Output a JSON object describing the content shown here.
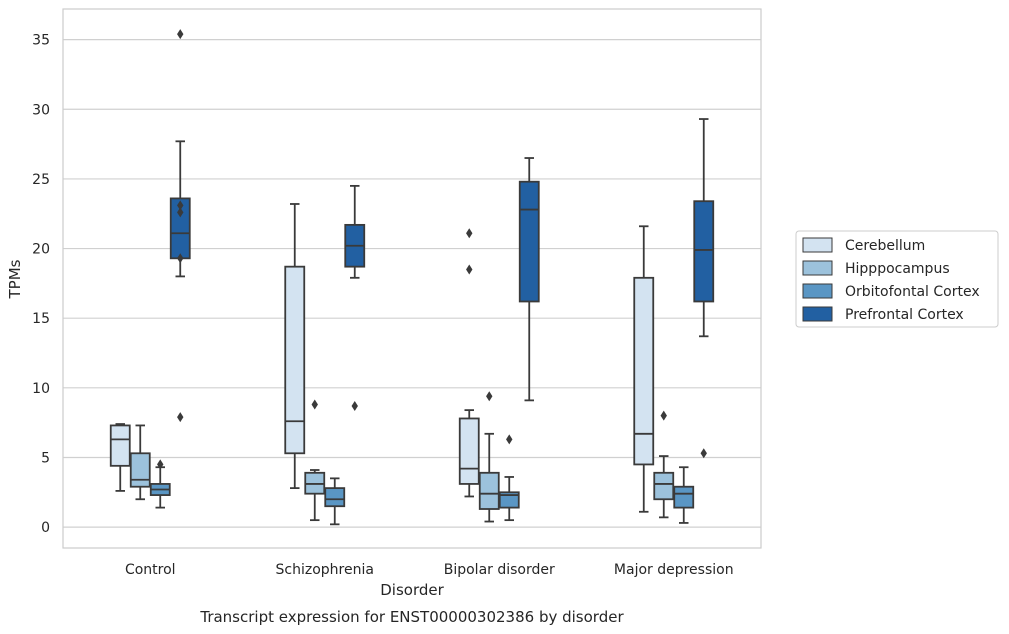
{
  "chart_data": {
    "type": "box",
    "title": "",
    "caption": "Transcript expression for ENST00000302386 by disorder",
    "xlabel": "Disorder",
    "ylabel": "TPMs",
    "ylim": [
      -1.5,
      37.2
    ],
    "yticks": [
      0,
      5,
      10,
      15,
      20,
      25,
      30,
      35
    ],
    "ytick_labels": [
      "0",
      "5",
      "10",
      "15",
      "20",
      "25",
      "30",
      "35"
    ],
    "grid": "horizontal",
    "legend_position": "right",
    "categories": [
      "Control",
      "Schizophrenia",
      "Bipolar disorder",
      "Major depression"
    ],
    "series": [
      {
        "name": "Cerebellum",
        "color": "#d3e3f1",
        "boxes": [
          {
            "whisker_low": 2.6,
            "q1": 4.4,
            "median": 6.3,
            "q3": 7.3,
            "whisker_high": 7.4,
            "outliers": []
          },
          {
            "whisker_low": 2.8,
            "q1": 5.3,
            "median": 7.6,
            "q3": 18.7,
            "whisker_high": 23.2,
            "outliers": []
          },
          {
            "whisker_low": 2.2,
            "q1": 3.1,
            "median": 4.2,
            "q3": 7.8,
            "whisker_high": 8.4,
            "outliers": [
              18.5,
              21.1
            ]
          },
          {
            "whisker_low": 1.1,
            "q1": 4.5,
            "median": 6.7,
            "q3": 17.9,
            "whisker_high": 21.6,
            "outliers": []
          }
        ]
      },
      {
        "name": "Hipppocampus",
        "color": "#9cc2dc",
        "boxes": [
          {
            "whisker_low": 2.0,
            "q1": 2.9,
            "median": 3.4,
            "q3": 5.3,
            "whisker_high": 7.3,
            "outliers": []
          },
          {
            "whisker_low": 0.5,
            "q1": 2.4,
            "median": 3.1,
            "q3": 3.9,
            "whisker_high": 4.1,
            "outliers": [
              8.8
            ]
          },
          {
            "whisker_low": 0.4,
            "q1": 1.3,
            "median": 2.4,
            "q3": 3.9,
            "whisker_high": 6.7,
            "outliers": [
              9.4
            ]
          },
          {
            "whisker_low": 0.7,
            "q1": 2.0,
            "median": 3.1,
            "q3": 3.9,
            "whisker_high": 5.1,
            "outliers": [
              8.0
            ]
          }
        ]
      },
      {
        "name": "Orbitofontal Cortex",
        "color": "#5a96c4",
        "boxes": [
          {
            "whisker_low": 1.4,
            "q1": 2.3,
            "median": 2.7,
            "q3": 3.1,
            "whisker_high": 4.3,
            "outliers": [
              4.5
            ]
          },
          {
            "whisker_low": 0.2,
            "q1": 1.5,
            "median": 2.0,
            "q3": 2.8,
            "whisker_high": 3.5,
            "outliers": []
          },
          {
            "whisker_low": 0.5,
            "q1": 1.4,
            "median": 2.3,
            "q3": 2.5,
            "whisker_high": 3.6,
            "outliers": [
              6.3
            ]
          },
          {
            "whisker_low": 0.3,
            "q1": 1.4,
            "median": 2.4,
            "q3": 2.9,
            "whisker_high": 4.3,
            "outliers": []
          }
        ]
      },
      {
        "name": "Prefrontal Cortex",
        "color": "#2260a2",
        "boxes": [
          {
            "whisker_low": 18.0,
            "q1": 19.3,
            "median": 21.1,
            "q3": 23.6,
            "whisker_high": 27.7,
            "outliers": [
              7.9,
              19.3,
              22.6,
              23.1,
              35.4
            ]
          },
          {
            "whisker_low": 17.9,
            "q1": 18.7,
            "median": 20.2,
            "q3": 21.7,
            "whisker_high": 24.5,
            "outliers": [
              8.7
            ]
          },
          {
            "whisker_low": 9.1,
            "q1": 16.2,
            "median": 22.8,
            "q3": 24.8,
            "whisker_high": 26.5,
            "outliers": []
          },
          {
            "whisker_low": 13.7,
            "q1": 16.2,
            "median": 19.9,
            "q3": 23.4,
            "whisker_high": 29.3,
            "outliers": [
              5.3
            ]
          }
        ]
      }
    ]
  }
}
